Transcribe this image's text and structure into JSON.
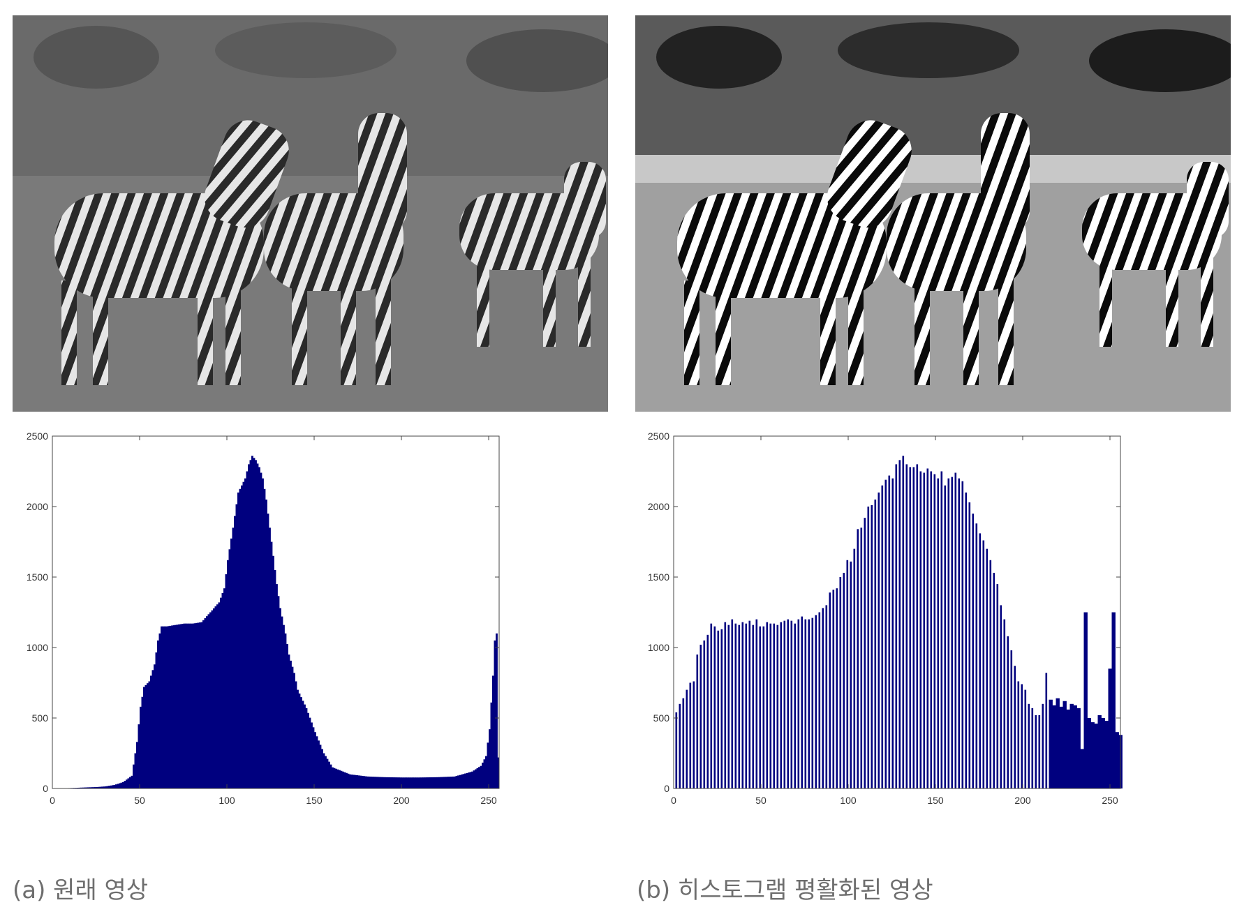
{
  "captions": {
    "a": "(a) 원래 영상",
    "b": "(b) 히스토그램 평활화된 영상"
  },
  "photos": {
    "a": {
      "subject": "zebras-grayscale-original",
      "tone": "low-contrast"
    },
    "b": {
      "subject": "zebras-grayscale-equalized",
      "tone": "high-contrast"
    }
  },
  "colors": {
    "bar": "#00007f",
    "axis": "#444444",
    "sky_a": "#6f6f6f",
    "ground_a": "#7a7a7a",
    "sky_b": "#3a3a3a",
    "ground_b": "#9a9a9a"
  },
  "chart_data": [
    {
      "type": "bar",
      "id": "a",
      "xlim": [
        0,
        256
      ],
      "ylim": [
        0,
        2500
      ],
      "xticks": [
        0,
        50,
        100,
        150,
        200,
        250
      ],
      "yticks": [
        0,
        500,
        1000,
        1500,
        2000,
        2500
      ],
      "grid": false,
      "x": [
        0,
        10,
        20,
        25,
        30,
        35,
        40,
        45,
        48,
        50,
        52,
        55,
        58,
        60,
        62,
        65,
        70,
        75,
        80,
        85,
        90,
        95,
        98,
        100,
        103,
        106,
        108,
        110,
        112,
        114,
        116,
        118,
        120,
        122,
        125,
        128,
        130,
        133,
        135,
        138,
        140,
        145,
        150,
        155,
        160,
        170,
        180,
        190,
        200,
        210,
        220,
        230,
        240,
        245,
        248,
        250,
        252,
        253,
        254,
        255
      ],
      "values": [
        0,
        3,
        8,
        10,
        15,
        25,
        45,
        90,
        330,
        580,
        720,
        760,
        880,
        1050,
        1150,
        1150,
        1160,
        1170,
        1170,
        1180,
        1250,
        1320,
        1420,
        1620,
        1850,
        2100,
        2150,
        2200,
        2300,
        2360,
        2330,
        2280,
        2200,
        2050,
        1750,
        1450,
        1280,
        1100,
        950,
        820,
        700,
        570,
        400,
        250,
        150,
        100,
        85,
        80,
        78,
        78,
        80,
        85,
        120,
        160,
        230,
        420,
        800,
        1050,
        1100,
        220
      ]
    },
    {
      "type": "bar",
      "id": "b",
      "xlim": [
        0,
        256
      ],
      "ylim": [
        0,
        2500
      ],
      "xticks": [
        0,
        50,
        100,
        150,
        200,
        250
      ],
      "yticks": [
        0,
        500,
        1000,
        1500,
        2000,
        2500
      ],
      "grid": false,
      "dense_from": 215,
      "x": [
        1,
        3,
        5,
        7,
        9,
        11,
        13,
        15,
        17,
        19,
        21,
        23,
        25,
        27,
        29,
        31,
        33,
        35,
        37,
        39,
        41,
        43,
        45,
        47,
        49,
        51,
        53,
        55,
        57,
        59,
        61,
        63,
        65,
        67,
        69,
        71,
        73,
        75,
        77,
        79,
        81,
        83,
        85,
        87,
        89,
        91,
        93,
        95,
        97,
        99,
        101,
        103,
        105,
        107,
        109,
        111,
        113,
        115,
        117,
        119,
        121,
        123,
        125,
        127,
        129,
        131,
        133,
        135,
        137,
        139,
        141,
        143,
        145,
        147,
        149,
        151,
        153,
        155,
        157,
        159,
        161,
        163,
        165,
        167,
        169,
        171,
        173,
        175,
        177,
        179,
        181,
        183,
        185,
        187,
        189,
        191,
        193,
        195,
        197,
        199,
        201,
        203,
        205,
        207,
        209,
        211,
        213,
        215,
        217,
        219,
        221,
        223,
        225,
        227,
        229,
        231,
        233,
        235,
        237,
        239,
        241,
        243,
        245,
        247,
        249,
        251,
        253,
        255
      ],
      "values": [
        540,
        600,
        640,
        700,
        750,
        760,
        950,
        1020,
        1050,
        1090,
        1170,
        1150,
        1120,
        1130,
        1180,
        1160,
        1200,
        1170,
        1160,
        1180,
        1170,
        1190,
        1160,
        1200,
        1150,
        1150,
        1180,
        1170,
        1170,
        1160,
        1180,
        1190,
        1200,
        1190,
        1170,
        1200,
        1220,
        1200,
        1200,
        1210,
        1230,
        1250,
        1280,
        1300,
        1390,
        1410,
        1420,
        1500,
        1530,
        1620,
        1610,
        1700,
        1840,
        1850,
        1920,
        2000,
        2010,
        2050,
        2100,
        2150,
        2190,
        2220,
        2200,
        2300,
        2330,
        2360,
        2300,
        2280,
        2280,
        2300,
        2250,
        2240,
        2270,
        2250,
        2230,
        2200,
        2250,
        2150,
        2200,
        2210,
        2240,
        2200,
        2180,
        2100,
        2030,
        1950,
        1880,
        1810,
        1760,
        1700,
        1620,
        1530,
        1450,
        1300,
        1200,
        1080,
        980,
        870,
        760,
        740,
        700,
        600,
        570,
        520,
        520,
        600,
        820,
        630,
        590,
        640,
        580,
        620,
        560,
        600,
        590,
        570,
        280,
        1250,
        500,
        470,
        460,
        520,
        500,
        480,
        850,
        1250,
        400,
        380
      ]
    }
  ]
}
